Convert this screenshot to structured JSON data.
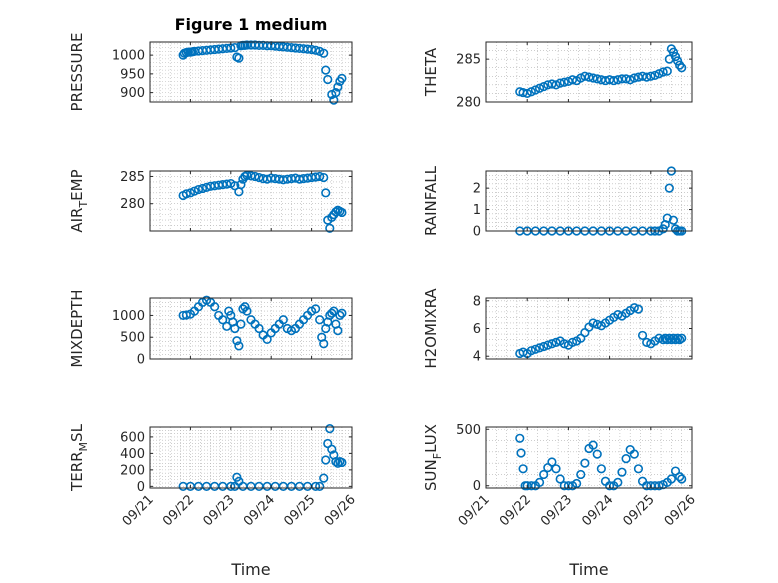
{
  "figure_title": "Figure 1 medium",
  "colors": {
    "marker": "#0072BD",
    "axis": "#262626",
    "grid": "#b0b0b0"
  },
  "chart_data": [
    {
      "id": "pressure",
      "type": "scatter",
      "ylabel": "PRESSURE",
      "title": "Figure 1 medium",
      "ylim": [
        875,
        1035
      ],
      "yticks": [
        900,
        950,
        1000
      ],
      "yticklabels": [
        "900",
        "950",
        "1000"
      ],
      "xlim": [
        0,
        5
      ],
      "xticks": [
        0,
        1,
        2,
        3,
        4,
        5
      ],
      "x": [
        0.82,
        0.85,
        0.9,
        0.95,
        1.0,
        1.05,
        1.1,
        1.2,
        1.3,
        1.4,
        1.5,
        1.6,
        1.7,
        1.8,
        1.9,
        2.0,
        2.1,
        2.15,
        2.2,
        2.25,
        2.3,
        2.35,
        2.4,
        2.5,
        2.6,
        2.7,
        2.8,
        2.9,
        3.0,
        3.1,
        3.2,
        3.3,
        3.4,
        3.5,
        3.6,
        3.7,
        3.8,
        3.9,
        4.0,
        4.1,
        4.2,
        4.3,
        4.35,
        4.4,
        4.5,
        4.55,
        4.6,
        4.65,
        4.7,
        4.75
      ],
      "y": [
        1000,
        1005,
        1007,
        1008,
        1008,
        1009,
        1010,
        1011,
        1012,
        1013,
        1014,
        1015,
        1016,
        1017,
        1018,
        1019,
        1020,
        995,
        992,
        1025,
        1026,
        1026,
        1027,
        1027,
        1027,
        1026,
        1026,
        1025,
        1025,
        1024,
        1023,
        1022,
        1021,
        1020,
        1019,
        1018,
        1017,
        1016,
        1015,
        1013,
        1010,
        1005,
        960,
        935,
        895,
        880,
        900,
        915,
        930,
        938
      ]
    },
    {
      "id": "theta",
      "type": "scatter",
      "ylabel": "THETA",
      "ylim": [
        280,
        287
      ],
      "yticks": [
        280,
        285
      ],
      "yticklabels": [
        "280",
        "285"
      ],
      "xlim": [
        0,
        5
      ],
      "xticks": [
        0,
        1,
        2,
        3,
        4,
        5
      ],
      "x": [
        0.82,
        0.9,
        1.0,
        1.1,
        1.2,
        1.3,
        1.4,
        1.5,
        1.6,
        1.7,
        1.8,
        1.9,
        2.0,
        2.1,
        2.2,
        2.3,
        2.4,
        2.5,
        2.6,
        2.7,
        2.8,
        2.9,
        3.0,
        3.1,
        3.2,
        3.3,
        3.4,
        3.5,
        3.6,
        3.7,
        3.8,
        3.9,
        4.0,
        4.1,
        4.2,
        4.3,
        4.4,
        4.45,
        4.5,
        4.55,
        4.6,
        4.65,
        4.7,
        4.75
      ],
      "y": [
        281.2,
        281.1,
        281.0,
        281.2,
        281.4,
        281.6,
        281.8,
        282.0,
        282.1,
        282.0,
        282.2,
        282.3,
        282.4,
        282.6,
        282.5,
        282.8,
        283.0,
        282.9,
        282.8,
        282.7,
        282.6,
        282.5,
        282.6,
        282.5,
        282.6,
        282.7,
        282.7,
        282.6,
        282.8,
        282.9,
        283.0,
        282.9,
        283.0,
        283.1,
        283.3,
        283.5,
        283.6,
        285.0,
        286.2,
        285.8,
        285.3,
        284.8,
        284.3,
        284.0
      ]
    },
    {
      "id": "airtemp",
      "type": "scatter",
      "ylabel": "AIR",
      "ylabel_sub": "T",
      "ylabel_rest": "EMP",
      "ylim": [
        275,
        286
      ],
      "yticks": [
        280,
        285
      ],
      "yticklabels": [
        "280",
        "285"
      ],
      "xlim": [
        0,
        5
      ],
      "xticks": [
        0,
        1,
        2,
        3,
        4,
        5
      ],
      "x": [
        0.82,
        0.9,
        1.0,
        1.1,
        1.2,
        1.3,
        1.4,
        1.5,
        1.6,
        1.7,
        1.8,
        1.9,
        2.0,
        2.1,
        2.2,
        2.25,
        2.3,
        2.35,
        2.4,
        2.5,
        2.6,
        2.7,
        2.8,
        2.9,
        3.0,
        3.1,
        3.2,
        3.3,
        3.4,
        3.5,
        3.6,
        3.7,
        3.8,
        3.9,
        4.0,
        4.1,
        4.2,
        4.3,
        4.35,
        4.4,
        4.45,
        4.5,
        4.55,
        4.6,
        4.65,
        4.7,
        4.75
      ],
      "y": [
        281.5,
        281.8,
        282.0,
        282.3,
        282.6,
        282.8,
        283.0,
        283.2,
        283.3,
        283.4,
        283.5,
        283.6,
        283.7,
        283.3,
        282.2,
        283.5,
        284.5,
        285.0,
        285.2,
        285.1,
        285.0,
        284.8,
        284.6,
        284.5,
        284.7,
        284.6,
        284.5,
        284.4,
        284.5,
        284.6,
        284.7,
        284.5,
        284.6,
        284.7,
        284.8,
        284.9,
        285.0,
        284.8,
        282.0,
        277.0,
        275.5,
        277.5,
        278.0,
        278.5,
        278.8,
        278.6,
        278.4
      ]
    },
    {
      "id": "rainfall",
      "type": "scatter",
      "ylabel": "RAINFALL",
      "ylim": [
        0,
        2.8
      ],
      "yticks": [
        0,
        1,
        2
      ],
      "yticklabels": [
        "0",
        "1",
        "2"
      ],
      "xlim": [
        0,
        5
      ],
      "xticks": [
        0,
        1,
        2,
        3,
        4,
        5
      ],
      "x": [
        0.82,
        1.0,
        1.2,
        1.4,
        1.6,
        1.8,
        2.0,
        2.2,
        2.4,
        2.6,
        2.8,
        3.0,
        3.2,
        3.4,
        3.6,
        3.8,
        4.0,
        4.1,
        4.2,
        4.3,
        4.35,
        4.4,
        4.45,
        4.5,
        4.55,
        4.6,
        4.65,
        4.7,
        4.75
      ],
      "y": [
        0,
        0,
        0,
        0,
        0,
        0,
        0,
        0,
        0,
        0,
        0,
        0,
        0,
        0,
        0,
        0,
        0,
        0,
        0,
        0.1,
        0.3,
        0.6,
        2.0,
        2.8,
        0.5,
        0.1,
        0,
        0,
        0
      ]
    },
    {
      "id": "mixdepth",
      "type": "scatter",
      "ylabel": "MIXDEPTH",
      "ylim": [
        0,
        1400
      ],
      "yticks": [
        0,
        500,
        1000
      ],
      "yticklabels": [
        "0",
        "500",
        "1000"
      ],
      "xlim": [
        0,
        5
      ],
      "xticks": [
        0,
        1,
        2,
        3,
        4,
        5
      ],
      "x": [
        0.82,
        0.9,
        1.0,
        1.1,
        1.2,
        1.3,
        1.4,
        1.5,
        1.6,
        1.7,
        1.8,
        1.9,
        1.95,
        2.0,
        2.05,
        2.1,
        2.15,
        2.2,
        2.25,
        2.3,
        2.35,
        2.4,
        2.5,
        2.6,
        2.7,
        2.8,
        2.9,
        3.0,
        3.1,
        3.2,
        3.3,
        3.4,
        3.5,
        3.6,
        3.7,
        3.8,
        3.9,
        4.0,
        4.1,
        4.2,
        4.25,
        4.3,
        4.35,
        4.4,
        4.45,
        4.5,
        4.55,
        4.6,
        4.65,
        4.7,
        4.75
      ],
      "y": [
        1000,
        1010,
        1030,
        1100,
        1200,
        1300,
        1350,
        1300,
        1200,
        1000,
        900,
        750,
        1100,
        1000,
        850,
        700,
        420,
        300,
        800,
        1150,
        1200,
        1100,
        900,
        800,
        700,
        550,
        450,
        600,
        700,
        800,
        900,
        700,
        650,
        700,
        800,
        900,
        1000,
        1100,
        1150,
        900,
        500,
        350,
        700,
        850,
        1000,
        1050,
        1100,
        800,
        650,
        1000,
        1050
      ]
    },
    {
      "id": "h2omixra",
      "type": "scatter",
      "ylabel": "H2OMIXRA",
      "ylim": [
        3.8,
        8.2
      ],
      "yticks": [
        4,
        6,
        8
      ],
      "yticklabels": [
        "4",
        "6",
        "8"
      ],
      "xlim": [
        0,
        5
      ],
      "xticks": [
        0,
        1,
        2,
        3,
        4,
        5
      ],
      "x": [
        0.82,
        0.9,
        1.0,
        1.1,
        1.2,
        1.3,
        1.4,
        1.5,
        1.6,
        1.7,
        1.8,
        1.9,
        2.0,
        2.1,
        2.2,
        2.3,
        2.4,
        2.5,
        2.6,
        2.7,
        2.8,
        2.9,
        3.0,
        3.1,
        3.2,
        3.3,
        3.4,
        3.5,
        3.6,
        3.7,
        3.8,
        3.9,
        4.0,
        4.1,
        4.2,
        4.3,
        4.35,
        4.4,
        4.45,
        4.5,
        4.55,
        4.6,
        4.65,
        4.7,
        4.75
      ],
      "y": [
        4.2,
        4.3,
        4.2,
        4.4,
        4.5,
        4.6,
        4.7,
        4.8,
        4.9,
        5.0,
        5.1,
        4.9,
        4.8,
        5.0,
        5.1,
        5.3,
        5.7,
        6.1,
        6.4,
        6.3,
        6.2,
        6.4,
        6.6,
        6.8,
        7.0,
        6.9,
        7.1,
        7.3,
        7.5,
        7.4,
        5.5,
        5.0,
        4.9,
        5.1,
        5.3,
        5.2,
        5.3,
        5.2,
        5.3,
        5.2,
        5.3,
        5.2,
        5.3,
        5.2,
        5.3
      ]
    },
    {
      "id": "terrmsl",
      "type": "scatter",
      "ylabel": "TERR",
      "ylabel_sub": "M",
      "ylabel_rest": "SL",
      "ylim": [
        -20,
        720
      ],
      "yticks": [
        0,
        200,
        400,
        600
      ],
      "yticklabels": [
        "0",
        "200",
        "400",
        "600"
      ],
      "xlim": [
        0,
        5
      ],
      "xticks": [
        0,
        1,
        2,
        3,
        4,
        5
      ],
      "xlabel": "Time",
      "xticklabels": [
        "09/21",
        "09/22",
        "09/23",
        "09/24",
        "09/25",
        "09/26"
      ],
      "x": [
        0.82,
        1.0,
        1.2,
        1.4,
        1.6,
        1.8,
        2.0,
        2.1,
        2.15,
        2.2,
        2.3,
        2.5,
        2.7,
        2.9,
        3.1,
        3.3,
        3.5,
        3.7,
        3.9,
        4.1,
        4.2,
        4.3,
        4.35,
        4.4,
        4.45,
        4.5,
        4.55,
        4.6,
        4.65,
        4.7,
        4.75
      ],
      "y": [
        0,
        0,
        0,
        0,
        0,
        0,
        0,
        0,
        110,
        60,
        0,
        0,
        0,
        0,
        0,
        0,
        0,
        0,
        0,
        0,
        0,
        100,
        320,
        520,
        700,
        450,
        380,
        300,
        280,
        300,
        290
      ]
    },
    {
      "id": "sunflux",
      "type": "scatter",
      "ylabel": "SUN",
      "ylabel_sub": "F",
      "ylabel_rest": "LUX",
      "ylim": [
        -20,
        520
      ],
      "yticks": [
        0,
        500
      ],
      "yticklabels": [
        "0",
        "500"
      ],
      "xlim": [
        0,
        5
      ],
      "xticks": [
        0,
        1,
        2,
        3,
        4,
        5
      ],
      "xlabel": "Time",
      "xticklabels": [
        "09/21",
        "09/22",
        "09/23",
        "09/24",
        "09/25",
        "09/26"
      ],
      "x": [
        0.82,
        0.85,
        0.9,
        0.95,
        1.0,
        1.1,
        1.2,
        1.3,
        1.4,
        1.5,
        1.6,
        1.7,
        1.8,
        1.9,
        2.0,
        2.1,
        2.2,
        2.3,
        2.4,
        2.5,
        2.6,
        2.7,
        2.8,
        2.9,
        3.0,
        3.1,
        3.2,
        3.3,
        3.4,
        3.5,
        3.6,
        3.7,
        3.8,
        3.9,
        4.0,
        4.1,
        4.2,
        4.3,
        4.4,
        4.5,
        4.6,
        4.7,
        4.75
      ],
      "y": [
        420,
        290,
        150,
        0,
        0,
        0,
        0,
        30,
        100,
        160,
        210,
        150,
        60,
        0,
        0,
        0,
        20,
        100,
        200,
        330,
        360,
        280,
        150,
        40,
        0,
        0,
        30,
        120,
        240,
        320,
        280,
        150,
        40,
        0,
        0,
        0,
        0,
        10,
        30,
        60,
        130,
        80,
        60
      ]
    }
  ]
}
